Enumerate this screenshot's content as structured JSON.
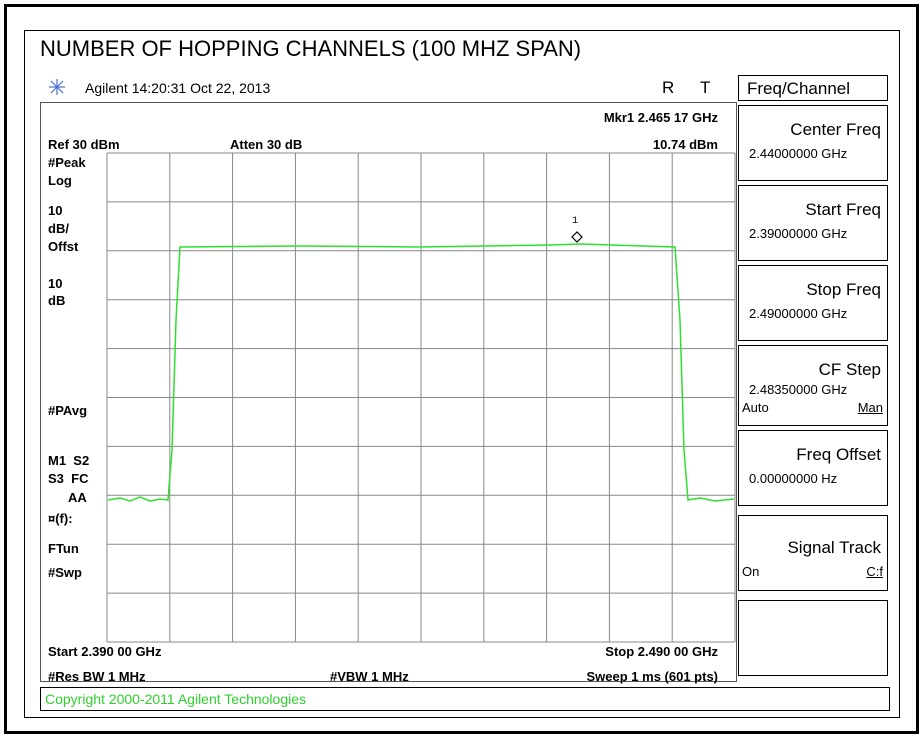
{
  "title": "NUMBER OF HOPPING CHANNELS (100 MHZ SPAN)",
  "header": {
    "brand": "Agilent",
    "datetime": "14:20:31  Oct 22, 2013",
    "r": "R",
    "t": "T"
  },
  "screen": {
    "marker": "Mkr1  2.465 17 GHz",
    "ref": "Ref 30 dBm",
    "atten": "Atten 30 dB",
    "marker_level": "10.74 dBm",
    "marker_number": "1",
    "left_labels": [
      "#Peak",
      "Log",
      "10",
      "dB/",
      "Offst",
      "10",
      "dB",
      "#PAvg",
      "M1  S2",
      "S3  FC",
      "AA",
      "¤(f):",
      "FTun",
      "#Swp"
    ],
    "start": "Start 2.390 00 GHz",
    "stop": "Stop 2.490 00 GHz",
    "res_bw": "#Res BW 1 MHz",
    "vbw": "#VBW 1 MHz",
    "sweep": "Sweep 1 ms (601 pts)"
  },
  "softkeys": {
    "menu": "Freq/Channel",
    "keys": [
      {
        "label": "Center Freq",
        "value": "2.44000000 GHz"
      },
      {
        "label": "Start Freq",
        "value": "2.39000000 GHz"
      },
      {
        "label": "Stop Freq",
        "value": "2.49000000 GHz"
      },
      {
        "label": "CF Step",
        "value": "2.48350000 GHz",
        "left": "Auto",
        "right": "Man"
      },
      {
        "label": "Freq Offset",
        "value": "0.00000000  Hz"
      },
      {
        "label": "Signal Track",
        "left": "On",
        "right": "C:f"
      }
    ]
  },
  "copyright": "Copyright 2000-2011 Agilent Technologies"
}
